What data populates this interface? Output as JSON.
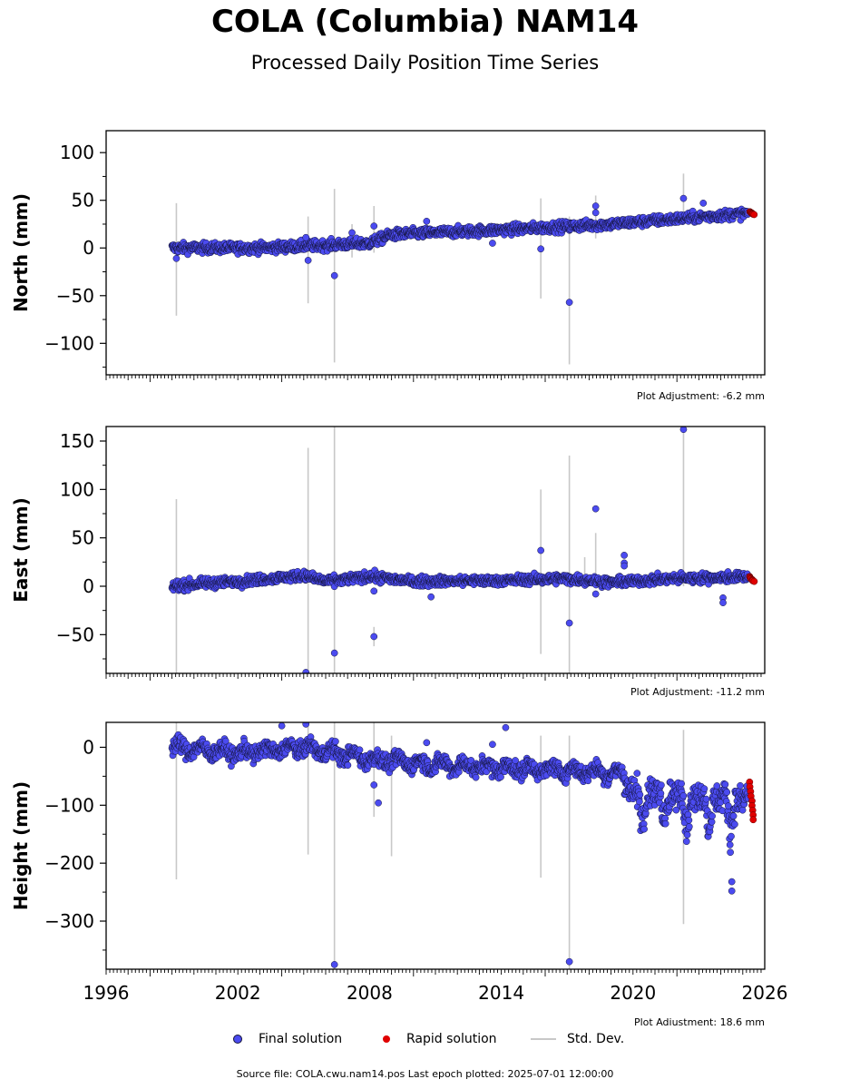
{
  "title": "COLA (Columbia) NAM14",
  "subtitle": "Processed Daily Position Time Series",
  "source_text": "Source file: COLA.cwu.nam14.pos  Last epoch plotted: 2025-07-01 12:00:00",
  "legend": {
    "final_label": "Final solution",
    "rapid_label": "Rapid solution",
    "std_label": "Std. Dev."
  },
  "colors": {
    "final": "#4b4bf0",
    "final_edge": "#14143a",
    "rapid": "#e00000",
    "std": "#c8c8c8"
  },
  "chart_data": [
    {
      "type": "scatter",
      "panel": "north",
      "ylabel": "North (mm)",
      "xlim": [
        1996,
        2026
      ],
      "ylim": [
        -133,
        123
      ],
      "yticks": [
        -100,
        -50,
        0,
        50,
        100
      ],
      "adjustment": "Plot Adjustment: -6.2 mm",
      "series": [
        {
          "name": "Final solution",
          "trend": [
            [
              1999,
              0
            ],
            [
              2003,
              0
            ],
            [
              2008,
              5
            ],
            [
              2009,
              14
            ],
            [
              2014,
              19
            ],
            [
              2019,
              25
            ],
            [
              2025.5,
              37
            ]
          ]
        },
        {
          "name": "Rapid solution",
          "trend": [
            [
              2025.3,
              38
            ],
            [
              2025.5,
              35
            ]
          ]
        }
      ],
      "outliers": [
        [
          1999.2,
          -11
        ],
        [
          2005.2,
          -13
        ],
        [
          2005.1,
          11
        ],
        [
          2006.4,
          -29
        ],
        [
          2007.2,
          16
        ],
        [
          2008.2,
          23
        ],
        [
          2010.6,
          28
        ],
        [
          2013.6,
          5
        ],
        [
          2015.8,
          -1
        ],
        [
          2017.1,
          -57
        ],
        [
          2018.3,
          44
        ],
        [
          2018.3,
          37
        ],
        [
          2022.3,
          52
        ],
        [
          2023.2,
          47
        ]
      ],
      "std_dev_bars": [
        [
          1999.2,
          -71,
          47
        ],
        [
          2005.2,
          -58,
          33
        ],
        [
          2006.4,
          -120,
          62
        ],
        [
          2007.2,
          -10,
          25
        ],
        [
          2008.2,
          -5,
          44
        ],
        [
          2015.8,
          -53,
          52
        ],
        [
          2017.1,
          -122,
          33
        ],
        [
          2018.3,
          10,
          55
        ],
        [
          2022.3,
          30,
          78
        ]
      ]
    },
    {
      "type": "scatter",
      "panel": "east",
      "ylabel": "East (mm)",
      "xlim": [
        1996,
        2026
      ],
      "ylim": [
        -90,
        165
      ],
      "yticks": [
        -50,
        0,
        50,
        100,
        150
      ],
      "adjustment": "Plot Adjustment: -11.2 mm",
      "series": [
        {
          "name": "Final solution",
          "trend": [
            [
              1999,
              0
            ],
            [
              2000.5,
              3
            ],
            [
              2002,
              5
            ],
            [
              2005,
              11
            ],
            [
              2006,
              5
            ],
            [
              2008,
              10
            ],
            [
              2010,
              5
            ],
            [
              2014,
              6
            ],
            [
              2017,
              8
            ],
            [
              2019,
              4
            ],
            [
              2022,
              8
            ],
            [
              2025.5,
              10
            ]
          ]
        },
        {
          "name": "Rapid solution",
          "trend": [
            [
              2025.3,
              10
            ],
            [
              2025.5,
              5
            ]
          ]
        }
      ],
      "outliers": [
        [
          2005.1,
          -89
        ],
        [
          2006.4,
          -69
        ],
        [
          2008.2,
          -52
        ],
        [
          2008.2,
          -5
        ],
        [
          2010.8,
          -11
        ],
        [
          2015.8,
          37
        ],
        [
          2017.1,
          -38
        ],
        [
          2018.3,
          80
        ],
        [
          2018.3,
          -8
        ],
        [
          2019.6,
          32
        ],
        [
          2019.6,
          24
        ],
        [
          2019.6,
          21
        ],
        [
          2022.3,
          162
        ],
        [
          2024.1,
          -12
        ],
        [
          2024.1,
          -17
        ]
      ],
      "std_dev_bars": [
        [
          1999.2,
          -90,
          90
        ],
        [
          2005.2,
          -90,
          143
        ],
        [
          2006.4,
          -90,
          165
        ],
        [
          2008.2,
          -62,
          -42
        ],
        [
          2015.8,
          -70,
          100
        ],
        [
          2017.1,
          -90,
          135
        ],
        [
          2017.8,
          0,
          30
        ],
        [
          2018.3,
          0,
          55
        ],
        [
          2022.3,
          0,
          165
        ]
      ]
    },
    {
      "type": "scatter",
      "panel": "height",
      "ylabel": "Height (mm)",
      "xlim": [
        1996,
        2026
      ],
      "ylim": [
        -383,
        43
      ],
      "yticks": [
        -300,
        -200,
        -100,
        0
      ],
      "xticks": [
        1996,
        2002,
        2008,
        2014,
        2020,
        2026
      ],
      "adjustment": "Plot Adjustment: 18.6 mm",
      "series": [
        {
          "name": "Final solution",
          "trend": [
            [
              1999,
              0
            ],
            [
              2002,
              -10
            ],
            [
              2005,
              0
            ],
            [
              2008,
              -20
            ],
            [
              2011,
              -30
            ],
            [
              2014,
              -35
            ],
            [
              2017,
              -40
            ],
            [
              2019.5,
              -45
            ],
            [
              2020,
              -75
            ],
            [
              2025.5,
              -90
            ]
          ]
        },
        {
          "name": "Rapid solution",
          "trend": [
            [
              2025.3,
              -60
            ],
            [
              2025.5,
              -125
            ]
          ]
        }
      ],
      "outliers": [
        [
          2004.0,
          37
        ],
        [
          2005.1,
          40
        ],
        [
          2006.4,
          -375
        ],
        [
          2008.2,
          -65
        ],
        [
          2008.4,
          -96
        ],
        [
          2010.6,
          8
        ],
        [
          2013.6,
          5
        ],
        [
          2014.2,
          34
        ],
        [
          2017.1,
          -370
        ],
        [
          2024.5,
          -248
        ],
        [
          2024.5,
          -232
        ]
      ],
      "std_dev_bars": [
        [
          1999.2,
          -228,
          43
        ],
        [
          2005.2,
          -185,
          43
        ],
        [
          2006.4,
          -383,
          43
        ],
        [
          2008.2,
          -120,
          43
        ],
        [
          2009.0,
          -188,
          20
        ],
        [
          2015.8,
          -225,
          20
        ],
        [
          2017.1,
          -383,
          20
        ],
        [
          2022.3,
          -305,
          30
        ]
      ]
    }
  ]
}
